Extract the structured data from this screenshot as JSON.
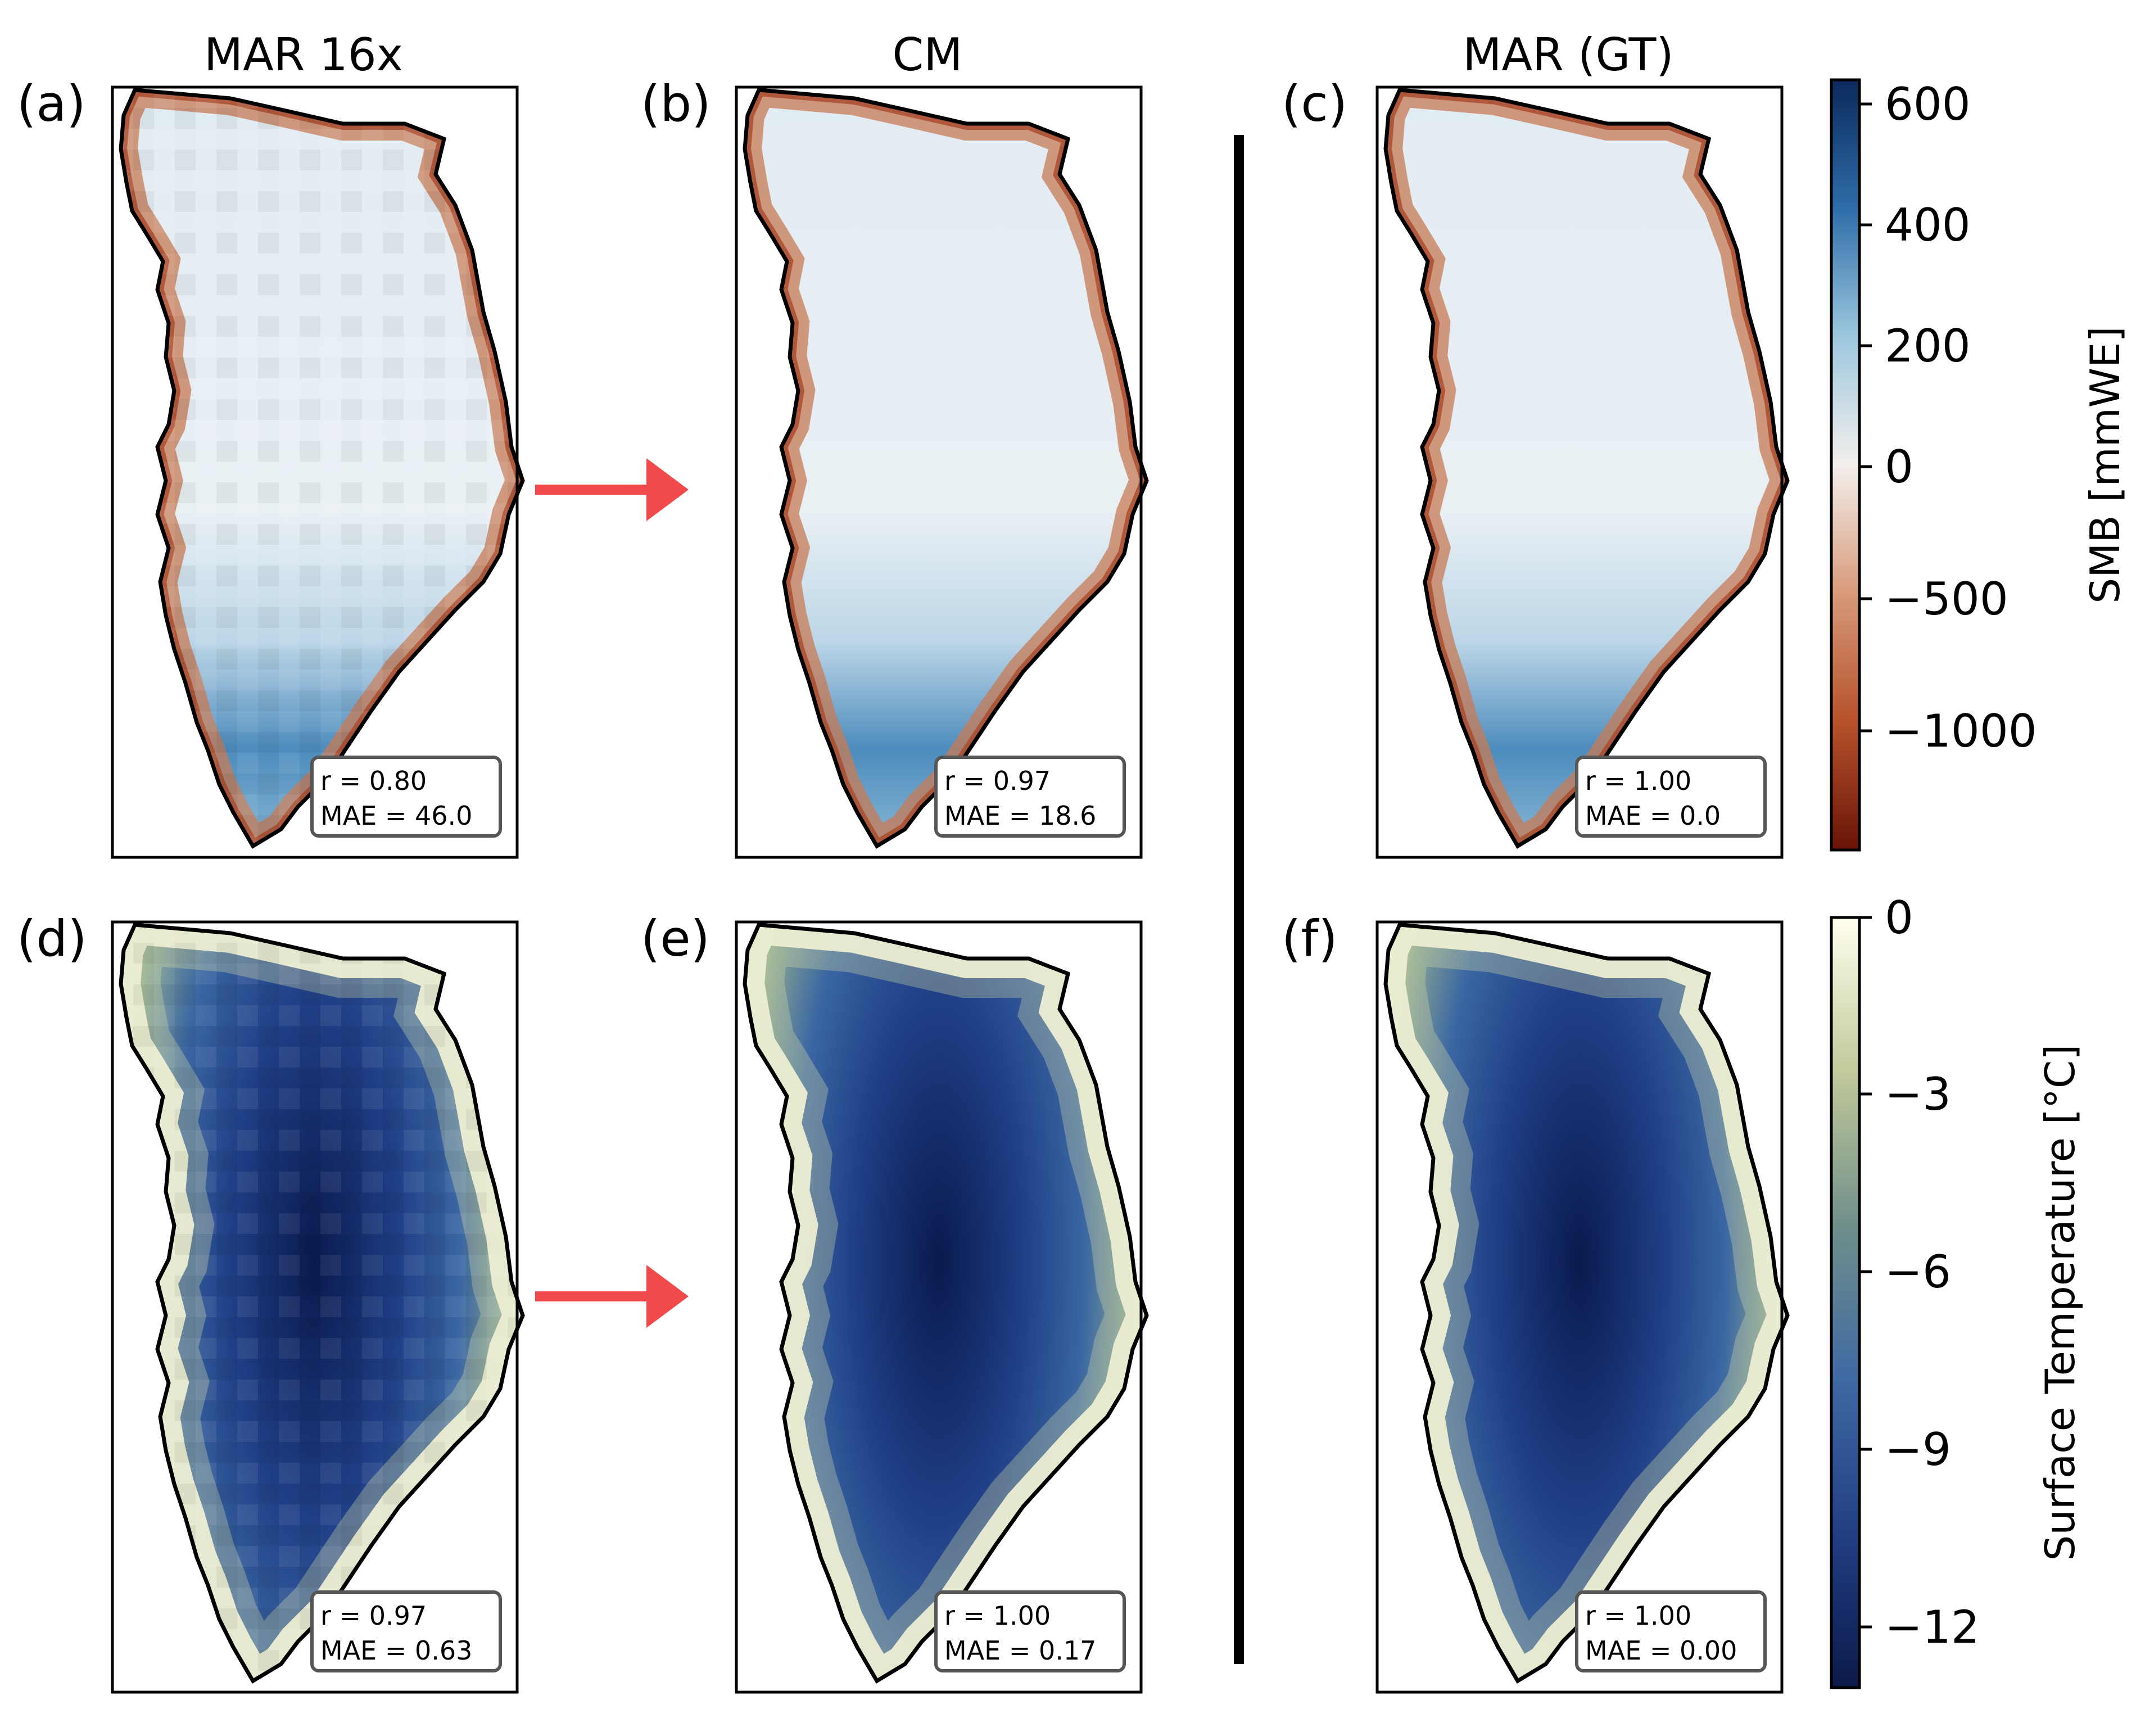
{
  "panels": [
    {
      "letter": "(a)",
      "title": "MAR 16x",
      "r": "r = 0.80",
      "mae": "MAE = 46.0",
      "variable": "smb",
      "style": "blocky"
    },
    {
      "letter": "(b)",
      "title": "CM",
      "r": "r = 0.97",
      "mae": "MAE = 18.6",
      "variable": "smb",
      "style": "smooth"
    },
    {
      "letter": "(c)",
      "title": "MAR (GT)",
      "r": "r = 1.00",
      "mae": "MAE = 0.0",
      "variable": "smb",
      "style": "smooth"
    },
    {
      "letter": "(d)",
      "title": "",
      "r": "r = 0.97",
      "mae": "MAE = 0.63",
      "variable": "temp",
      "style": "blocky"
    },
    {
      "letter": "(e)",
      "title": "",
      "r": "r = 1.00",
      "mae": "MAE = 0.17",
      "variable": "temp",
      "style": "smooth"
    },
    {
      "letter": "(f)",
      "title": "",
      "r": "r = 1.00",
      "mae": "MAE = 0.00",
      "variable": "temp",
      "style": "smooth"
    }
  ],
  "colorbars": [
    {
      "label": "SMB [mmWE]",
      "ticks": [
        "600",
        "400",
        "200",
        "0",
        "−500",
        "−1000"
      ],
      "colors": [
        "#0b2a5c",
        "#2f6ca8",
        "#9cc7de",
        "#f3efec",
        "#d79a7a",
        "#b6522c",
        "#6a1408"
      ]
    },
    {
      "label": "Surface Temperature [°C]",
      "ticks": [
        "0",
        "−3",
        "−6",
        "−9",
        "−12"
      ],
      "colors": [
        "#ffffee",
        "#c2c99a",
        "#6f8f8a",
        "#3f69a3",
        "#223f84",
        "#0b1a4a"
      ]
    }
  ],
  "colors": {
    "arrow": "#f24a4a",
    "coast": "#000000",
    "frame": "#000000"
  },
  "chart_data": [
    {
      "type": "heatmap",
      "panel": "(a)",
      "title": "MAR 16x",
      "metrics": {
        "r": 0.8,
        "MAE": 46.0
      }
    },
    {
      "type": "heatmap",
      "panel": "(b)",
      "title": "CM",
      "metrics": {
        "r": 0.97,
        "MAE": 18.6
      }
    },
    {
      "type": "heatmap",
      "panel": "(c)",
      "title": "MAR (GT)",
      "metrics": {
        "r": 1.0,
        "MAE": 0.0
      }
    },
    {
      "type": "heatmap",
      "panel": "(d)",
      "metrics": {
        "r": 0.97,
        "MAE": 0.63
      }
    },
    {
      "type": "heatmap",
      "panel": "(e)",
      "metrics": {
        "r": 1.0,
        "MAE": 0.17
      }
    },
    {
      "type": "heatmap",
      "panel": "(f)",
      "metrics": {
        "r": 1.0,
        "MAE": 0.0
      }
    }
  ]
}
